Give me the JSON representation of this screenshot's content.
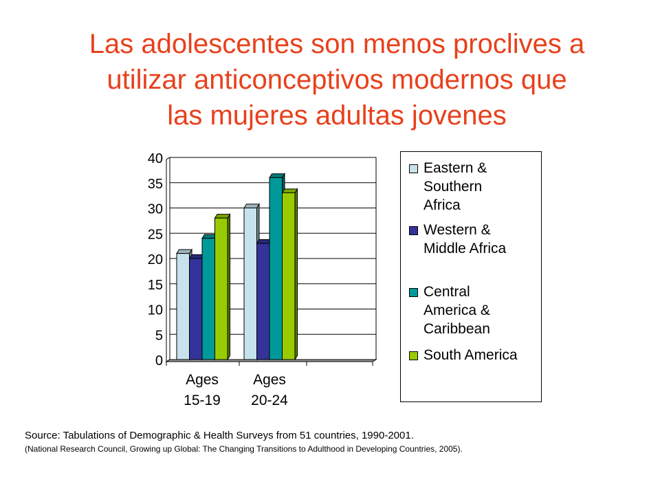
{
  "title": {
    "line1": "Las adolescentes son menos proclives a",
    "line2": "utilizar anticonceptivos modernos que",
    "line3": "las mujeres adultas jovenes"
  },
  "chart_data": {
    "type": "bar",
    "categories": [
      "Ages 15-19",
      "Ages 20-24"
    ],
    "category_lines": [
      [
        "Ages",
        "15-19"
      ],
      [
        "Ages",
        "20-24"
      ]
    ],
    "series": [
      {
        "name": "Eastern & Southern Africa",
        "label_lines": "Eastern &\nSouthern\nAfrica",
        "color": "#c6e2ec",
        "values": [
          21,
          30
        ]
      },
      {
        "name": "Western & Middle Africa",
        "label_lines": "Western &\nMiddle Africa",
        "color": "#333399",
        "values": [
          20,
          23
        ]
      },
      {
        "name": "Central America & Caribbean",
        "label_lines": "Central\nAmerica &\nCaribbean",
        "color": "#009999",
        "values": [
          24,
          36
        ]
      },
      {
        "name": "South America",
        "label_lines": "South America",
        "color": "#99cc00",
        "values": [
          28,
          33
        ]
      }
    ],
    "yticks": [
      "0",
      "5",
      "10",
      "15",
      "20",
      "25",
      "30",
      "35",
      "40"
    ],
    "ylim": [
      0,
      40
    ],
    "grid": true,
    "legend_position": "right",
    "style": "3d-clustered-column"
  },
  "source": {
    "line1": "Source: Tabulations of Demographic & Health Surveys from 51 countries, 1990-2001.",
    "line2": "(National Research Council, Growing up Global: The Changing Transitions to Adulthood in Developing Countries, 2005)."
  }
}
